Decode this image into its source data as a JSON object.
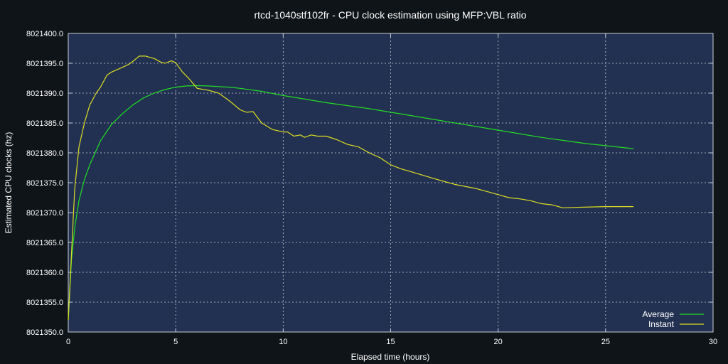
{
  "colors": {
    "background": "#0f1418",
    "plot_bg": "#223152",
    "grid": "#c9cfd8",
    "text": "#ffffff",
    "average": "#22dd22",
    "instant": "#dddd22"
  },
  "chart_data": {
    "type": "line",
    "title": "rtcd-1040stf102fr - CPU clock estimation using MFP:VBL ratio",
    "xlabel": "Elapsed time (hours)",
    "ylabel": "Estimated CPU clocks (hz)",
    "xlim": [
      0,
      30
    ],
    "ylim": [
      8021350,
      8021400
    ],
    "xticks": [
      "0",
      "5",
      "10",
      "15",
      "20",
      "25",
      "30"
    ],
    "yticks": [
      "8021350.0",
      "8021355.0",
      "8021360.0",
      "8021365.0",
      "8021370.0",
      "8021375.0",
      "8021380.0",
      "8021385.0",
      "8021390.0",
      "8021395.0",
      "8021400.0"
    ],
    "grid": true,
    "legend_position": "bottom-right",
    "series": [
      {
        "name": "Average",
        "x": [
          0,
          0.15,
          0.3,
          0.5,
          0.75,
          1,
          1.5,
          2,
          2.5,
          3,
          3.5,
          4,
          4.5,
          5,
          5.5,
          6,
          6.5,
          7,
          7.5,
          8,
          9,
          10,
          11,
          12,
          13,
          14,
          15,
          16,
          17,
          18,
          19,
          20,
          21,
          22,
          23,
          24,
          25,
          26.3
        ],
        "y": [
          8021352,
          8021362,
          8021367.5,
          8021372,
          8021375.5,
          8021378,
          8021382,
          8021384.7,
          8021386.5,
          8021388,
          8021389.2,
          8021390,
          8021390.6,
          8021391,
          8021391.2,
          8021391.25,
          8021391.2,
          8021391.1,
          8021391,
          8021390.8,
          8021390.3,
          8021389.6,
          8021389,
          8021388.4,
          8021387.9,
          8021387.4,
          8021386.8,
          8021386.2,
          8021385.6,
          8021385,
          8021384.4,
          8021383.8,
          8021383.2,
          8021382.6,
          8021382.1,
          8021381.6,
          8021381.2,
          8021380.7
        ]
      },
      {
        "name": "Instant",
        "x": [
          0,
          0.15,
          0.3,
          0.5,
          0.75,
          1,
          1.3,
          1.5,
          1.8,
          2,
          2.5,
          2.8,
          3,
          3.3,
          3.6,
          4,
          4.3,
          4.5,
          4.8,
          5,
          5.3,
          5.6,
          6,
          6.5,
          7,
          7.5,
          8,
          8.3,
          8.6,
          9,
          9.5,
          10,
          10.2,
          10.5,
          10.8,
          11,
          11.3,
          11.6,
          12,
          12.5,
          13,
          13.5,
          14,
          14.5,
          15,
          15.5,
          16,
          17,
          18,
          19,
          19.5,
          20,
          20.5,
          21,
          21.5,
          22,
          22.5,
          22.8,
          23,
          24,
          25,
          25.5,
          26,
          26.3
        ],
        "y": [
          8021352,
          8021363,
          8021374,
          8021381,
          8021385,
          8021388,
          8021390,
          8021391,
          8021393,
          8021393.5,
          8021394.3,
          8021394.8,
          8021395.3,
          8021396.2,
          8021396.2,
          8021395.8,
          8021395.2,
          8021395,
          8021395.4,
          8021395.1,
          8021393.6,
          8021392.5,
          8021390.8,
          8021390.5,
          8021390,
          8021388.7,
          8021387.2,
          8021386.8,
          8021386.9,
          8021385,
          8021383.9,
          8021383.5,
          8021383.5,
          8021382.8,
          8021383,
          8021382.6,
          8021383,
          8021382.8,
          8021382.8,
          8021382.2,
          8021381.4,
          8021381,
          8021380,
          8021379.2,
          8021378,
          8021377.3,
          8021376.8,
          8021375.7,
          8021374.7,
          8021374,
          8021373.5,
          8021373,
          8021372.5,
          8021372.3,
          8021372,
          8021371.5,
          8021371.3,
          8021371,
          8021370.8,
          8021370.9,
          8021371,
          8021371,
          8021371,
          8021371
        ]
      }
    ]
  }
}
